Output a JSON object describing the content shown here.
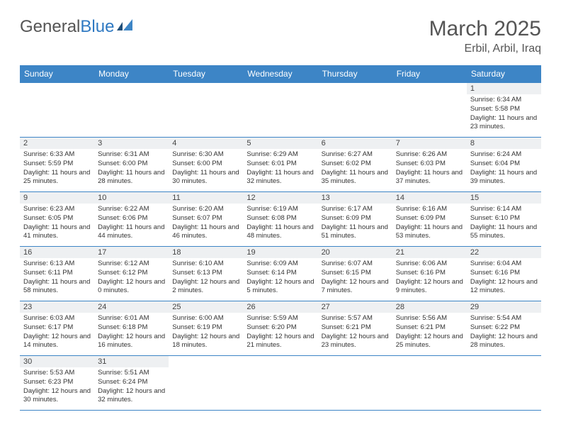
{
  "logo": {
    "text1": "General",
    "text2": "Blue"
  },
  "title": "March 2025",
  "location": "Erbil, Arbil, Iraq",
  "colors": {
    "header_bg": "#3d85c6",
    "header_text": "#ffffff",
    "border": "#3d85c6",
    "daynum_bg": "#eef0f2",
    "text": "#333333",
    "title_color": "#555555"
  },
  "typography": {
    "title_fontsize": 30,
    "location_fontsize": 16,
    "dayheader_fontsize": 12,
    "daynum_fontsize": 11,
    "content_fontsize": 9.5
  },
  "day_headers": [
    "Sunday",
    "Monday",
    "Tuesday",
    "Wednesday",
    "Thursday",
    "Friday",
    "Saturday"
  ],
  "weeks": [
    [
      null,
      null,
      null,
      null,
      null,
      null,
      {
        "n": "1",
        "sunrise": "Sunrise: 6:34 AM",
        "sunset": "Sunset: 5:58 PM",
        "daylight": "Daylight: 11 hours and 23 minutes."
      }
    ],
    [
      {
        "n": "2",
        "sunrise": "Sunrise: 6:33 AM",
        "sunset": "Sunset: 5:59 PM",
        "daylight": "Daylight: 11 hours and 25 minutes."
      },
      {
        "n": "3",
        "sunrise": "Sunrise: 6:31 AM",
        "sunset": "Sunset: 6:00 PM",
        "daylight": "Daylight: 11 hours and 28 minutes."
      },
      {
        "n": "4",
        "sunrise": "Sunrise: 6:30 AM",
        "sunset": "Sunset: 6:00 PM",
        "daylight": "Daylight: 11 hours and 30 minutes."
      },
      {
        "n": "5",
        "sunrise": "Sunrise: 6:29 AM",
        "sunset": "Sunset: 6:01 PM",
        "daylight": "Daylight: 11 hours and 32 minutes."
      },
      {
        "n": "6",
        "sunrise": "Sunrise: 6:27 AM",
        "sunset": "Sunset: 6:02 PM",
        "daylight": "Daylight: 11 hours and 35 minutes."
      },
      {
        "n": "7",
        "sunrise": "Sunrise: 6:26 AM",
        "sunset": "Sunset: 6:03 PM",
        "daylight": "Daylight: 11 hours and 37 minutes."
      },
      {
        "n": "8",
        "sunrise": "Sunrise: 6:24 AM",
        "sunset": "Sunset: 6:04 PM",
        "daylight": "Daylight: 11 hours and 39 minutes."
      }
    ],
    [
      {
        "n": "9",
        "sunrise": "Sunrise: 6:23 AM",
        "sunset": "Sunset: 6:05 PM",
        "daylight": "Daylight: 11 hours and 41 minutes."
      },
      {
        "n": "10",
        "sunrise": "Sunrise: 6:22 AM",
        "sunset": "Sunset: 6:06 PM",
        "daylight": "Daylight: 11 hours and 44 minutes."
      },
      {
        "n": "11",
        "sunrise": "Sunrise: 6:20 AM",
        "sunset": "Sunset: 6:07 PM",
        "daylight": "Daylight: 11 hours and 46 minutes."
      },
      {
        "n": "12",
        "sunrise": "Sunrise: 6:19 AM",
        "sunset": "Sunset: 6:08 PM",
        "daylight": "Daylight: 11 hours and 48 minutes."
      },
      {
        "n": "13",
        "sunrise": "Sunrise: 6:17 AM",
        "sunset": "Sunset: 6:09 PM",
        "daylight": "Daylight: 11 hours and 51 minutes."
      },
      {
        "n": "14",
        "sunrise": "Sunrise: 6:16 AM",
        "sunset": "Sunset: 6:09 PM",
        "daylight": "Daylight: 11 hours and 53 minutes."
      },
      {
        "n": "15",
        "sunrise": "Sunrise: 6:14 AM",
        "sunset": "Sunset: 6:10 PM",
        "daylight": "Daylight: 11 hours and 55 minutes."
      }
    ],
    [
      {
        "n": "16",
        "sunrise": "Sunrise: 6:13 AM",
        "sunset": "Sunset: 6:11 PM",
        "daylight": "Daylight: 11 hours and 58 minutes."
      },
      {
        "n": "17",
        "sunrise": "Sunrise: 6:12 AM",
        "sunset": "Sunset: 6:12 PM",
        "daylight": "Daylight: 12 hours and 0 minutes."
      },
      {
        "n": "18",
        "sunrise": "Sunrise: 6:10 AM",
        "sunset": "Sunset: 6:13 PM",
        "daylight": "Daylight: 12 hours and 2 minutes."
      },
      {
        "n": "19",
        "sunrise": "Sunrise: 6:09 AM",
        "sunset": "Sunset: 6:14 PM",
        "daylight": "Daylight: 12 hours and 5 minutes."
      },
      {
        "n": "20",
        "sunrise": "Sunrise: 6:07 AM",
        "sunset": "Sunset: 6:15 PM",
        "daylight": "Daylight: 12 hours and 7 minutes."
      },
      {
        "n": "21",
        "sunrise": "Sunrise: 6:06 AM",
        "sunset": "Sunset: 6:16 PM",
        "daylight": "Daylight: 12 hours and 9 minutes."
      },
      {
        "n": "22",
        "sunrise": "Sunrise: 6:04 AM",
        "sunset": "Sunset: 6:16 PM",
        "daylight": "Daylight: 12 hours and 12 minutes."
      }
    ],
    [
      {
        "n": "23",
        "sunrise": "Sunrise: 6:03 AM",
        "sunset": "Sunset: 6:17 PM",
        "daylight": "Daylight: 12 hours and 14 minutes."
      },
      {
        "n": "24",
        "sunrise": "Sunrise: 6:01 AM",
        "sunset": "Sunset: 6:18 PM",
        "daylight": "Daylight: 12 hours and 16 minutes."
      },
      {
        "n": "25",
        "sunrise": "Sunrise: 6:00 AM",
        "sunset": "Sunset: 6:19 PM",
        "daylight": "Daylight: 12 hours and 18 minutes."
      },
      {
        "n": "26",
        "sunrise": "Sunrise: 5:59 AM",
        "sunset": "Sunset: 6:20 PM",
        "daylight": "Daylight: 12 hours and 21 minutes."
      },
      {
        "n": "27",
        "sunrise": "Sunrise: 5:57 AM",
        "sunset": "Sunset: 6:21 PM",
        "daylight": "Daylight: 12 hours and 23 minutes."
      },
      {
        "n": "28",
        "sunrise": "Sunrise: 5:56 AM",
        "sunset": "Sunset: 6:21 PM",
        "daylight": "Daylight: 12 hours and 25 minutes."
      },
      {
        "n": "29",
        "sunrise": "Sunrise: 5:54 AM",
        "sunset": "Sunset: 6:22 PM",
        "daylight": "Daylight: 12 hours and 28 minutes."
      }
    ],
    [
      {
        "n": "30",
        "sunrise": "Sunrise: 5:53 AM",
        "sunset": "Sunset: 6:23 PM",
        "daylight": "Daylight: 12 hours and 30 minutes."
      },
      {
        "n": "31",
        "sunrise": "Sunrise: 5:51 AM",
        "sunset": "Sunset: 6:24 PM",
        "daylight": "Daylight: 12 hours and 32 minutes."
      },
      null,
      null,
      null,
      null,
      null
    ]
  ]
}
